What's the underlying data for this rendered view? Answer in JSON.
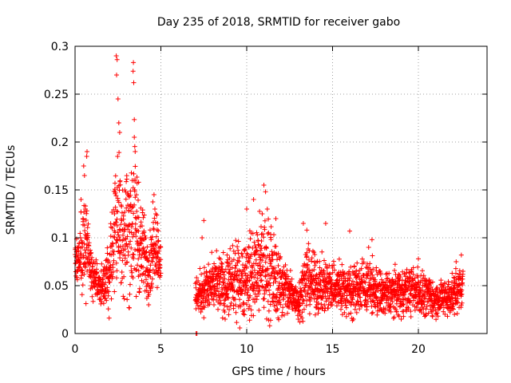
{
  "chart_data": {
    "type": "scatter",
    "title": "Day 235 of 2018, SRMTID for receiver gabo",
    "xlabel": "GPS time / hours",
    "ylabel": "SRMTID / TECUs",
    "xlim": [
      0,
      24
    ],
    "ylim": [
      0,
      0.3
    ],
    "xticks": [
      0,
      5,
      10,
      15,
      20
    ],
    "xtick_labels": [
      "0",
      "5",
      "10",
      "15",
      "20"
    ],
    "yticks": [
      0,
      0.05,
      0.1,
      0.15,
      0.2,
      0.25,
      0.3
    ],
    "ytick_labels": [
      "0",
      "0.05",
      "0.1",
      "0.15",
      "0.2",
      "0.25",
      "0.3"
    ],
    "grid": true,
    "marker": "+",
    "color": "#ff0000",
    "series": [
      {
        "name": "gabo",
        "segments": [
          {
            "x_range": [
              0.0,
              5.0
            ],
            "envelope": [
              {
                "x": 0.0,
                "center": 0.07,
                "spread": 0.03
              },
              {
                "x": 0.3,
                "center": 0.08,
                "spread": 0.05
              },
              {
                "x": 0.6,
                "center": 0.1,
                "spread": 0.08
              },
              {
                "x": 1.0,
                "center": 0.065,
                "spread": 0.04
              },
              {
                "x": 1.5,
                "center": 0.045,
                "spread": 0.03
              },
              {
                "x": 2.0,
                "center": 0.06,
                "spread": 0.05
              },
              {
                "x": 2.4,
                "center": 0.13,
                "spread": 0.12
              },
              {
                "x": 2.8,
                "center": 0.1,
                "spread": 0.08
              },
              {
                "x": 3.4,
                "center": 0.12,
                "spread": 0.14
              },
              {
                "x": 3.8,
                "center": 0.09,
                "spread": 0.07
              },
              {
                "x": 4.3,
                "center": 0.07,
                "spread": 0.05
              },
              {
                "x": 4.7,
                "center": 0.1,
                "spread": 0.06
              },
              {
                "x": 5.0,
                "center": 0.07,
                "spread": 0.04
              }
            ]
          },
          {
            "x_range": [
              7.0,
              22.6
            ],
            "envelope": [
              {
                "x": 7.0,
                "center": 0.04,
                "spread": 0.03
              },
              {
                "x": 8.0,
                "center": 0.05,
                "spread": 0.04
              },
              {
                "x": 9.0,
                "center": 0.05,
                "spread": 0.05
              },
              {
                "x": 10.0,
                "center": 0.06,
                "spread": 0.06
              },
              {
                "x": 11.0,
                "center": 0.07,
                "spread": 0.08
              },
              {
                "x": 12.0,
                "center": 0.05,
                "spread": 0.05
              },
              {
                "x": 13.0,
                "center": 0.035,
                "spread": 0.025
              },
              {
                "x": 13.5,
                "center": 0.06,
                "spread": 0.05
              },
              {
                "x": 14.0,
                "center": 0.05,
                "spread": 0.04
              },
              {
                "x": 15.0,
                "center": 0.05,
                "spread": 0.04
              },
              {
                "x": 16.0,
                "center": 0.045,
                "spread": 0.04
              },
              {
                "x": 17.0,
                "center": 0.05,
                "spread": 0.04
              },
              {
                "x": 18.0,
                "center": 0.04,
                "spread": 0.035
              },
              {
                "x": 19.0,
                "center": 0.045,
                "spread": 0.035
              },
              {
                "x": 20.0,
                "center": 0.045,
                "spread": 0.035
              },
              {
                "x": 21.0,
                "center": 0.035,
                "spread": 0.025
              },
              {
                "x": 22.0,
                "center": 0.04,
                "spread": 0.03
              },
              {
                "x": 22.6,
                "center": 0.05,
                "spread": 0.03
              }
            ]
          }
        ],
        "points": [
          [
            2.4,
            0.29
          ],
          [
            2.45,
            0.286
          ],
          [
            2.42,
            0.27
          ],
          [
            3.4,
            0.283
          ],
          [
            3.38,
            0.274
          ],
          [
            3.42,
            0.262
          ],
          [
            2.5,
            0.245
          ],
          [
            2.55,
            0.22
          ],
          [
            2.6,
            0.21
          ],
          [
            3.45,
            0.205
          ],
          [
            3.5,
            0.19
          ],
          [
            2.48,
            0.185
          ],
          [
            0.5,
            0.175
          ],
          [
            0.55,
            0.165
          ],
          [
            0.35,
            0.14
          ],
          [
            0.6,
            0.13
          ],
          [
            0.7,
            0.19
          ],
          [
            0.68,
            0.185
          ],
          [
            3.5,
            0.16
          ],
          [
            3.7,
            0.158
          ],
          [
            4.6,
            0.145
          ],
          [
            4.65,
            0.13
          ],
          [
            4.7,
            0.125
          ],
          [
            2.9,
            0.15
          ],
          [
            7.05,
            0.0
          ],
          [
            7.1,
            0.0
          ],
          [
            7.5,
            0.118
          ],
          [
            7.4,
            0.1
          ],
          [
            10.0,
            0.13
          ],
          [
            10.4,
            0.14
          ],
          [
            11.0,
            0.155
          ],
          [
            11.1,
            0.148
          ],
          [
            11.2,
            0.13
          ],
          [
            10.9,
            0.125
          ],
          [
            11.7,
            0.12
          ],
          [
            13.3,
            0.115
          ],
          [
            13.5,
            0.108
          ],
          [
            14.6,
            0.115
          ],
          [
            16.0,
            0.107
          ],
          [
            17.3,
            0.098
          ],
          [
            17.1,
            0.09
          ],
          [
            20.0,
            0.078
          ],
          [
            22.2,
            0.075
          ],
          [
            22.5,
            0.082
          ],
          [
            12.5,
            0.032
          ],
          [
            13.0,
            0.015
          ],
          [
            13.1,
            0.012
          ],
          [
            19.0,
            0.015
          ],
          [
            21.7,
            0.018
          ],
          [
            22.1,
            0.02
          ]
        ]
      }
    ]
  }
}
